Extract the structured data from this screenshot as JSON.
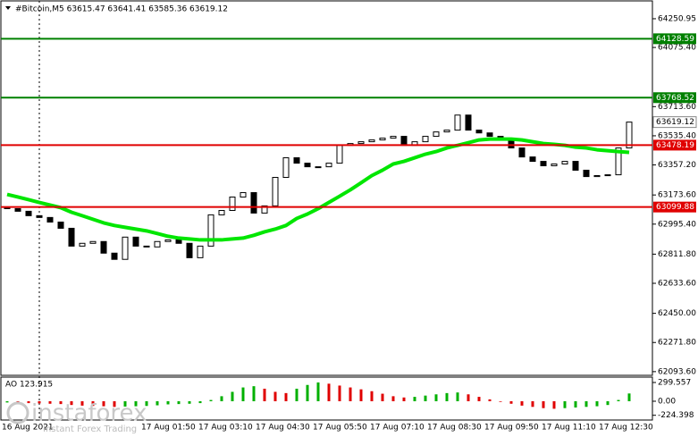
{
  "chart_data": [
    {
      "type": "candlestick",
      "title": "#Bitcoin,M5  63615.47 63641.41 63585.36 63619.12",
      "open": [
        63100,
        63090,
        63074,
        63047,
        63036,
        63008,
        62970,
        62861,
        62878,
        62889,
        62818,
        62780,
        62916,
        62861,
        62856,
        62889,
        62899,
        62878,
        62790,
        62861,
        63052,
        63079,
        63161,
        63188,
        63063,
        63107,
        63281,
        63401,
        63368,
        63346,
        63346,
        63368,
        63477,
        63488,
        63499,
        63510,
        63521,
        63532,
        63477,
        63499,
        63532,
        63559,
        63570,
        63662,
        63570,
        63553,
        63532,
        63510,
        63461,
        63406,
        63379,
        63352,
        63363,
        63379,
        63325,
        63286,
        63292,
        63297,
        63461
      ],
      "close": [
        63090,
        63074,
        63047,
        63036,
        63008,
        62970,
        62861,
        62878,
        62889,
        62818,
        62780,
        62916,
        62861,
        62856,
        62889,
        62899,
        62878,
        62790,
        62861,
        63052,
        63079,
        63161,
        63188,
        63063,
        63107,
        63281,
        63401,
        63368,
        63346,
        63346,
        63368,
        63477,
        63488,
        63499,
        63510,
        63521,
        63532,
        63477,
        63499,
        63532,
        63559,
        63570,
        63662,
        63570,
        63553,
        63532,
        63510,
        63461,
        63406,
        63379,
        63352,
        63363,
        63379,
        63325,
        63286,
        63292,
        63297,
        63461,
        63619.12
      ],
      "up_color": "#ffffff",
      "down_color": "#000000",
      "ma": {
        "color": "#00e600",
        "values": [
          63177,
          63161,
          63145,
          63128,
          63112,
          63096,
          63068,
          63047,
          63025,
          63003,
          62987,
          62976,
          62965,
          62954,
          62938,
          62921,
          62910,
          62905,
          62899,
          62899,
          62899,
          62905,
          62910,
          62927,
          62948,
          62965,
          62987,
          63030,
          63057,
          63090,
          63128,
          63166,
          63205,
          63248,
          63292,
          63325,
          63363,
          63379,
          63401,
          63423,
          63439,
          63461,
          63477,
          63493,
          63510,
          63515,
          63515,
          63515,
          63510,
          63499,
          63488,
          63483,
          63477,
          63466,
          63461,
          63450,
          63444,
          63439,
          63434
        ]
      },
      "levels": [
        {
          "value": 64128.59,
          "color": "#008000"
        },
        {
          "value": 63768.52,
          "color": "#008000"
        },
        {
          "value": 63478.19,
          "color": "#e00000"
        },
        {
          "value": 63099.88,
          "color": "#e00000"
        }
      ],
      "last_price": 63619.12,
      "ylim": [
        62071,
        64360
      ],
      "yticks": [
        64250.95,
        {
          "value": 64075.4,
          "label": "64075.40"
        },
        {
          "value": 63713.6,
          "label": "63713.60"
        },
        {
          "value": 63535.4,
          "label": "63535.40"
        },
        {
          "value": 63357.2,
          "label": "63357.20"
        },
        {
          "value": 63173.6,
          "label": "63173.60"
        },
        {
          "value": 62995.4,
          "label": "62995.40"
        },
        {
          "value": 62811.8,
          "label": "62811.80"
        },
        {
          "value": 62633.6,
          "label": "62633.60"
        },
        {
          "value": 62450,
          "label": "62450.00"
        },
        {
          "value": 62271.8,
          "label": "62271.80"
        },
        {
          "value": 62093.6,
          "label": "62093.60"
        }
      ],
      "x_labels": [
        "16 Aug 2021",
        "17 Aug 01:50",
        "17 Aug 03:10",
        "17 Aug 04:30",
        "17 Aug 05:50",
        "17 Aug 07:10",
        "17 Aug 08:30",
        "17 Aug 09:50",
        "17 Aug 11:10",
        "17 Aug 12:30"
      ]
    },
    {
      "type": "ao",
      "label": "AO 123.915",
      "values": [
        -20,
        -25,
        -30,
        -35,
        -40,
        -45,
        -60,
        -70,
        -75,
        -80,
        -90,
        -85,
        -80,
        -75,
        -65,
        -50,
        -45,
        -40,
        -30,
        20,
        80,
        150,
        220,
        240,
        200,
        150,
        130,
        200,
        260,
        300,
        280,
        250,
        220,
        190,
        160,
        120,
        80,
        60,
        70,
        90,
        110,
        130,
        140,
        110,
        70,
        30,
        -10,
        -40,
        -70,
        -90,
        -110,
        -120,
        -110,
        -100,
        -90,
        -80,
        -60,
        20,
        123.915
      ],
      "up_color": "#00b000",
      "down_color": "#e00000",
      "ylim": [
        -300,
        385
      ],
      "yticks": [
        299.557,
        {
          "value": 0,
          "label": "0.00"
        },
        -224.398
      ]
    }
  ],
  "watermark": {
    "brand": "instaforex",
    "tagline": "Instant Forex Trading"
  }
}
